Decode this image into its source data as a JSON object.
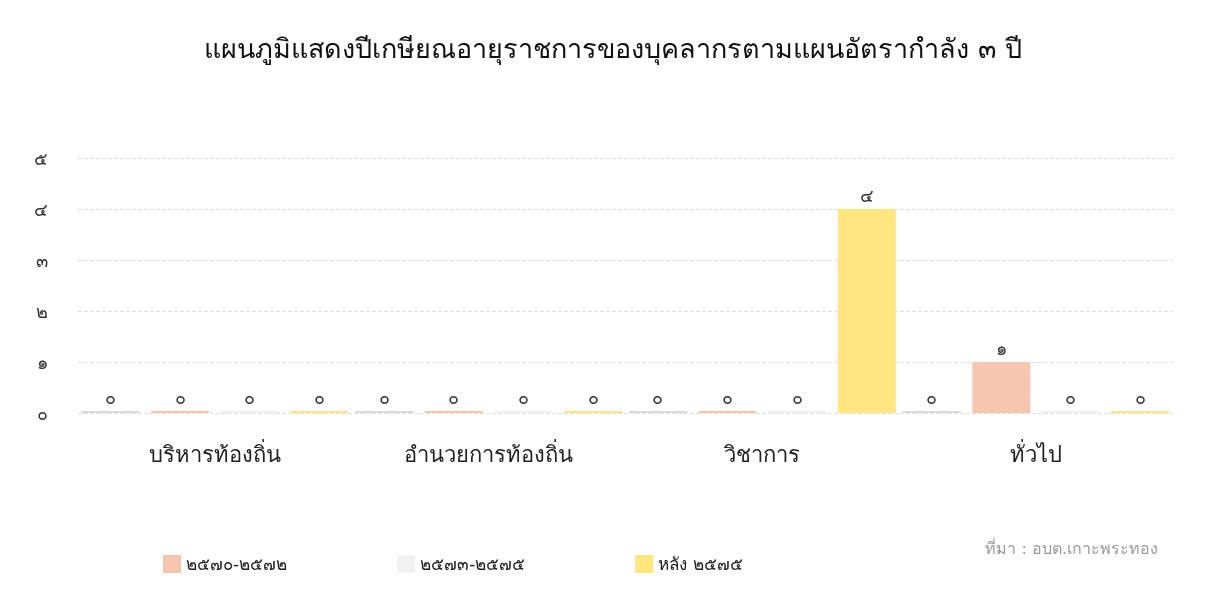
{
  "chart_data": {
    "type": "bar",
    "title": "แผนภูมิแสดงปีเกษียณอายุราชการของบุคลากรตามแผนอัตรากำลัง ๓ ปี",
    "categories": [
      "บริหารท้องถิ่น",
      "อำนวยการท้องถิ่น",
      "วิชาการ",
      "ทั่วไป"
    ],
    "series": [
      {
        "color": "#d9d9d9",
        "values": [
          0,
          0,
          0,
          0
        ],
        "value_labels": [
          "๐",
          "๐",
          "๐",
          "๐"
        ]
      },
      {
        "name": "๒๕๗๐-๒๕๗๒",
        "color": "#f7c6b0",
        "values": [
          0,
          0,
          0,
          1
        ],
        "value_labels": [
          "๐",
          "๐",
          "๐",
          "๑"
        ]
      },
      {
        "name": "๒๕๗๓-๒๕๗๕",
        "color": "#f2f2f2",
        "values": [
          0,
          0,
          0,
          0
        ],
        "value_labels": [
          "๐",
          "๐",
          "๐",
          "๐"
        ]
      },
      {
        "name": "หลัง ๒๕๗๕",
        "color": "#ffe680",
        "values": [
          0,
          0,
          4,
          0
        ],
        "value_labels": [
          "๐",
          "๐",
          "๔",
          "๐"
        ]
      }
    ],
    "ylim": [
      0,
      5
    ],
    "yticks": [
      {
        "value": 0,
        "label": "๐"
      },
      {
        "value": 1,
        "label": "๑"
      },
      {
        "value": 2,
        "label": "๒"
      },
      {
        "value": 3,
        "label": "๓"
      },
      {
        "value": 4,
        "label": "๔"
      },
      {
        "value": 5,
        "label": "๕"
      }
    ],
    "grid": "y",
    "legend": "bottom left",
    "annotations": [
      "ที่มา : อบต.เกาะพระทอง"
    ]
  }
}
